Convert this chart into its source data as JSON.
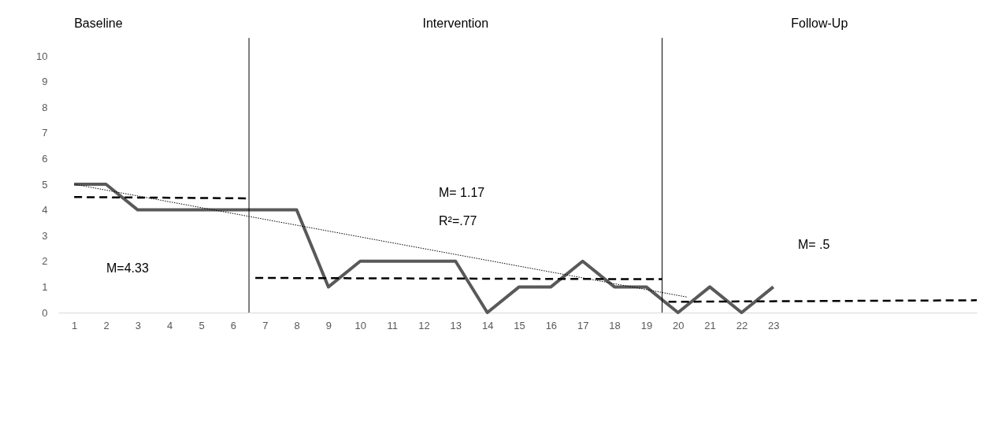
{
  "chart_data": {
    "type": "line",
    "x": [
      1,
      2,
      3,
      4,
      5,
      6,
      7,
      8,
      9,
      10,
      11,
      12,
      13,
      14,
      15,
      16,
      17,
      18,
      19,
      20,
      21,
      22,
      23
    ],
    "series": [
      {
        "type": "line",
        "color": "#595959",
        "line_style": "solid",
        "values": [
          5,
          5,
          4,
          4,
          4,
          4,
          4,
          4,
          1,
          2,
          2,
          2,
          2,
          0,
          1,
          1,
          2,
          1,
          1,
          0,
          1,
          0,
          1
        ]
      },
      {
        "type": "line",
        "color": "#000000",
        "line_style": "dashed",
        "x": [
          1,
          6.5
        ],
        "values": [
          4.5,
          4.45
        ]
      },
      {
        "type": "line",
        "color": "#000000",
        "line_style": "dashed",
        "x": [
          6.7,
          19.5
        ],
        "values": [
          1.35,
          1.3
        ]
      },
      {
        "type": "line",
        "color": "#000000",
        "line_style": "dashed",
        "x": [
          19.7,
          29.4
        ],
        "values": [
          0.42,
          0.48
        ]
      },
      {
        "type": "line",
        "color": "#000000",
        "line_style": "dotted",
        "x": [
          1,
          20.3
        ],
        "values": [
          5,
          0.6
        ]
      }
    ],
    "xlim": [
      0.5,
      29.4
    ],
    "xticks": [
      1,
      2,
      3,
      4,
      5,
      6,
      7,
      8,
      9,
      10,
      11,
      12,
      13,
      14,
      15,
      16,
      17,
      18,
      19,
      20,
      21,
      22,
      23
    ],
    "ylim": [
      0,
      10
    ],
    "yticks": [
      0,
      1,
      2,
      3,
      4,
      5,
      6,
      7,
      8,
      9,
      10
    ],
    "grid": false,
    "marker": "none",
    "ref_lines": [
      {
        "axis": "x",
        "value": 6.5,
        "color": "#000000"
      },
      {
        "axis": "x",
        "value": 19.5,
        "color": "#000000"
      }
    ],
    "annotations": [
      "Baseline",
      "Intervention",
      "Follow-Up",
      "M=4.33",
      "M= 1.17",
      "R²=.77",
      "M= .5"
    ]
  }
}
